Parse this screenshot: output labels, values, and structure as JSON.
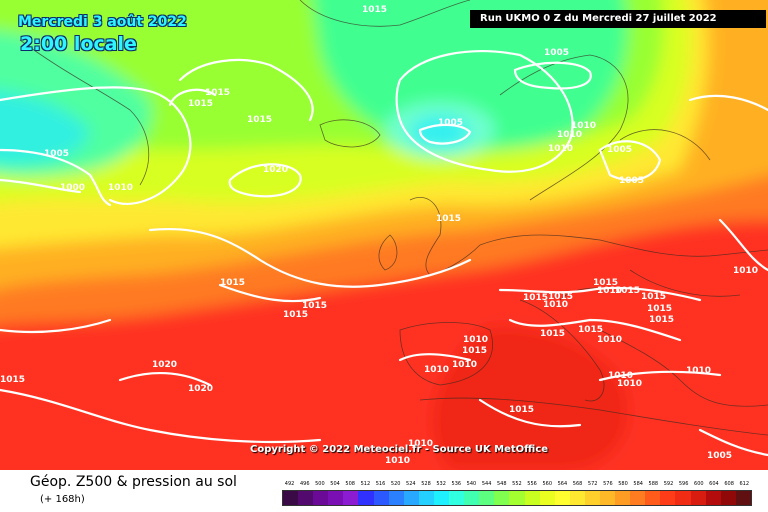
{
  "header": {
    "date_title": "Mercredi 3 août 2022",
    "time_title": "2:00 locale",
    "run_info": "Run UKMO 0 Z du Mercredi 27 juillet 2022"
  },
  "copyright": "Copyright © 2022 Meteociel.fr - Source UK MetOffice",
  "footer": {
    "product": "Géop. Z500 & pression au sol",
    "step": "(+ 168h)"
  },
  "isobar_labels": [
    {
      "id": "l1",
      "text": "1015"
    },
    {
      "id": "l2",
      "text": "1005"
    },
    {
      "id": "l3",
      "text": "1015"
    },
    {
      "id": "l4",
      "text": "1015"
    },
    {
      "id": "l5",
      "text": "1015"
    },
    {
      "id": "l6",
      "text": "1005"
    },
    {
      "id": "l7",
      "text": "1000"
    },
    {
      "id": "l8",
      "text": "1010"
    },
    {
      "id": "l9",
      "text": "1020"
    },
    {
      "id": "l10",
      "text": "1005"
    },
    {
      "id": "l11",
      "text": "1010"
    },
    {
      "id": "l12",
      "text": "1010"
    },
    {
      "id": "l13",
      "text": "1010"
    },
    {
      "id": "l14",
      "text": "1005"
    },
    {
      "id": "l15",
      "text": "1005"
    },
    {
      "id": "l16",
      "text": "1015"
    },
    {
      "id": "l17",
      "text": "1015"
    },
    {
      "id": "l18",
      "text": "1015"
    },
    {
      "id": "l19",
      "text": "1015"
    },
    {
      "id": "l20",
      "text": "1010"
    },
    {
      "id": "l21",
      "text": "1015"
    },
    {
      "id": "l22",
      "text": "1015"
    },
    {
      "id": "l23",
      "text": "1015"
    },
    {
      "id": "l24",
      "text": "1010"
    },
    {
      "id": "l25",
      "text": "1015"
    },
    {
      "id": "l26",
      "text": "1015"
    },
    {
      "id": "l27",
      "text": "1015"
    },
    {
      "id": "l28",
      "text": "1015"
    },
    {
      "id": "l29",
      "text": "1015"
    },
    {
      "id": "l30",
      "text": "1010"
    },
    {
      "id": "l31",
      "text": "1010"
    },
    {
      "id": "l32",
      "text": "1015"
    },
    {
      "id": "l33",
      "text": "1010"
    },
    {
      "id": "l34",
      "text": "1010"
    },
    {
      "id": "l35",
      "text": "1020"
    },
    {
      "id": "l36",
      "text": "1020"
    },
    {
      "id": "l37",
      "text": "1015"
    },
    {
      "id": "l38",
      "text": "1015"
    },
    {
      "id": "l39",
      "text": "1010"
    },
    {
      "id": "l40",
      "text": "1010"
    },
    {
      "id": "l41",
      "text": "1010"
    },
    {
      "id": "l42",
      "text": "1010"
    },
    {
      "id": "l43",
      "text": "1010"
    },
    {
      "id": "l44",
      "text": "1005"
    },
    {
      "id": "l45",
      "text": "1010"
    },
    {
      "id": "l46",
      "text": "1015"
    }
  ],
  "scale": {
    "ticks": [
      "492",
      "496",
      "500",
      "504",
      "508",
      "512",
      "516",
      "520",
      "524",
      "528",
      "532",
      "536",
      "540",
      "544",
      "548",
      "552",
      "556",
      "560",
      "564",
      "568",
      "572",
      "576",
      "580",
      "584",
      "588",
      "592",
      "596",
      "600",
      "604",
      "608",
      "612"
    ],
    "colors": [
      "#3a0a46",
      "#520a6e",
      "#6a0a96",
      "#7a10b4",
      "#8c1cd2",
      "#3030ff",
      "#2c58ff",
      "#2a80ff",
      "#28a8ff",
      "#24d0ff",
      "#1ef0ff",
      "#30ffe0",
      "#40ffb0",
      "#5cff80",
      "#80ff50",
      "#a4ff30",
      "#c8ff20",
      "#eaff20",
      "#ffff30",
      "#ffe830",
      "#ffd02c",
      "#ffb828",
      "#ff9c24",
      "#ff7c20",
      "#ff5c1c",
      "#ff3c18",
      "#f02c14",
      "#d81c10",
      "#b40c0c",
      "#900808",
      "#601010"
    ]
  }
}
